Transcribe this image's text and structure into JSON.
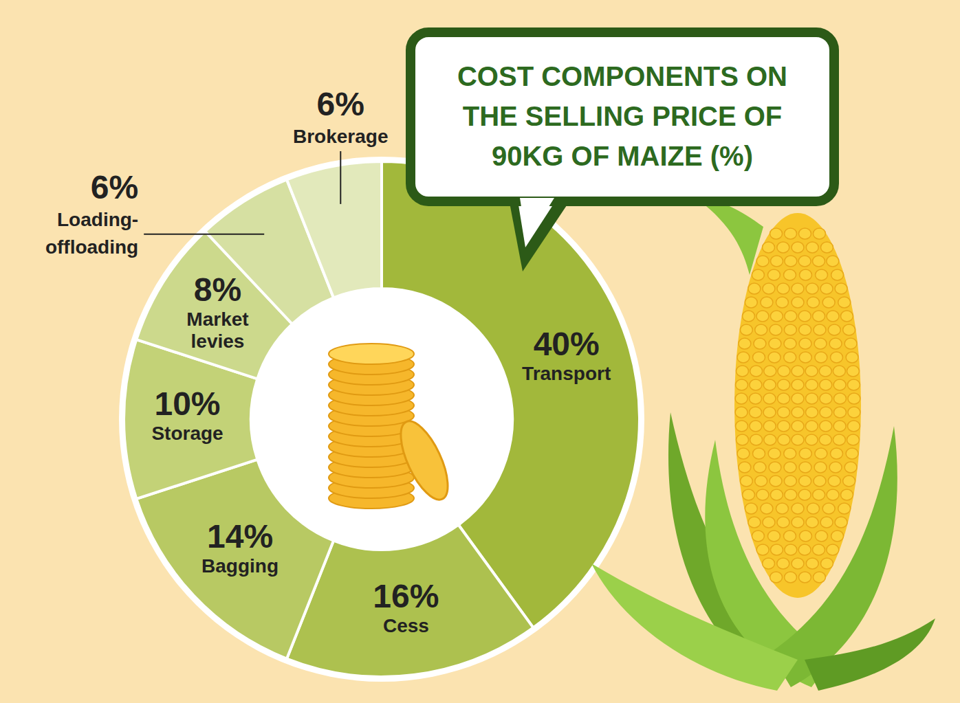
{
  "chart_data": {
    "type": "pie",
    "title": "COST COMPONENTS ON THE SELLING PRICE OF 90KG OF MAIZE (%)",
    "categories": [
      "Transport",
      "Cess",
      "Bagging",
      "Storage",
      "Market levies",
      "Loading-offloading",
      "Brokerage"
    ],
    "values": [
      40,
      16,
      14,
      10,
      8,
      6,
      6
    ],
    "value_labels": [
      "40%",
      "16%",
      "14%",
      "10%",
      "8%",
      "6%",
      "6%"
    ],
    "colors": [
      "#a2b83b",
      "#adc14f",
      "#b8c963",
      "#c3d277",
      "#ccd98c",
      "#d6e0a2",
      "#e2e9bb"
    ],
    "data_labels": true
  }
}
